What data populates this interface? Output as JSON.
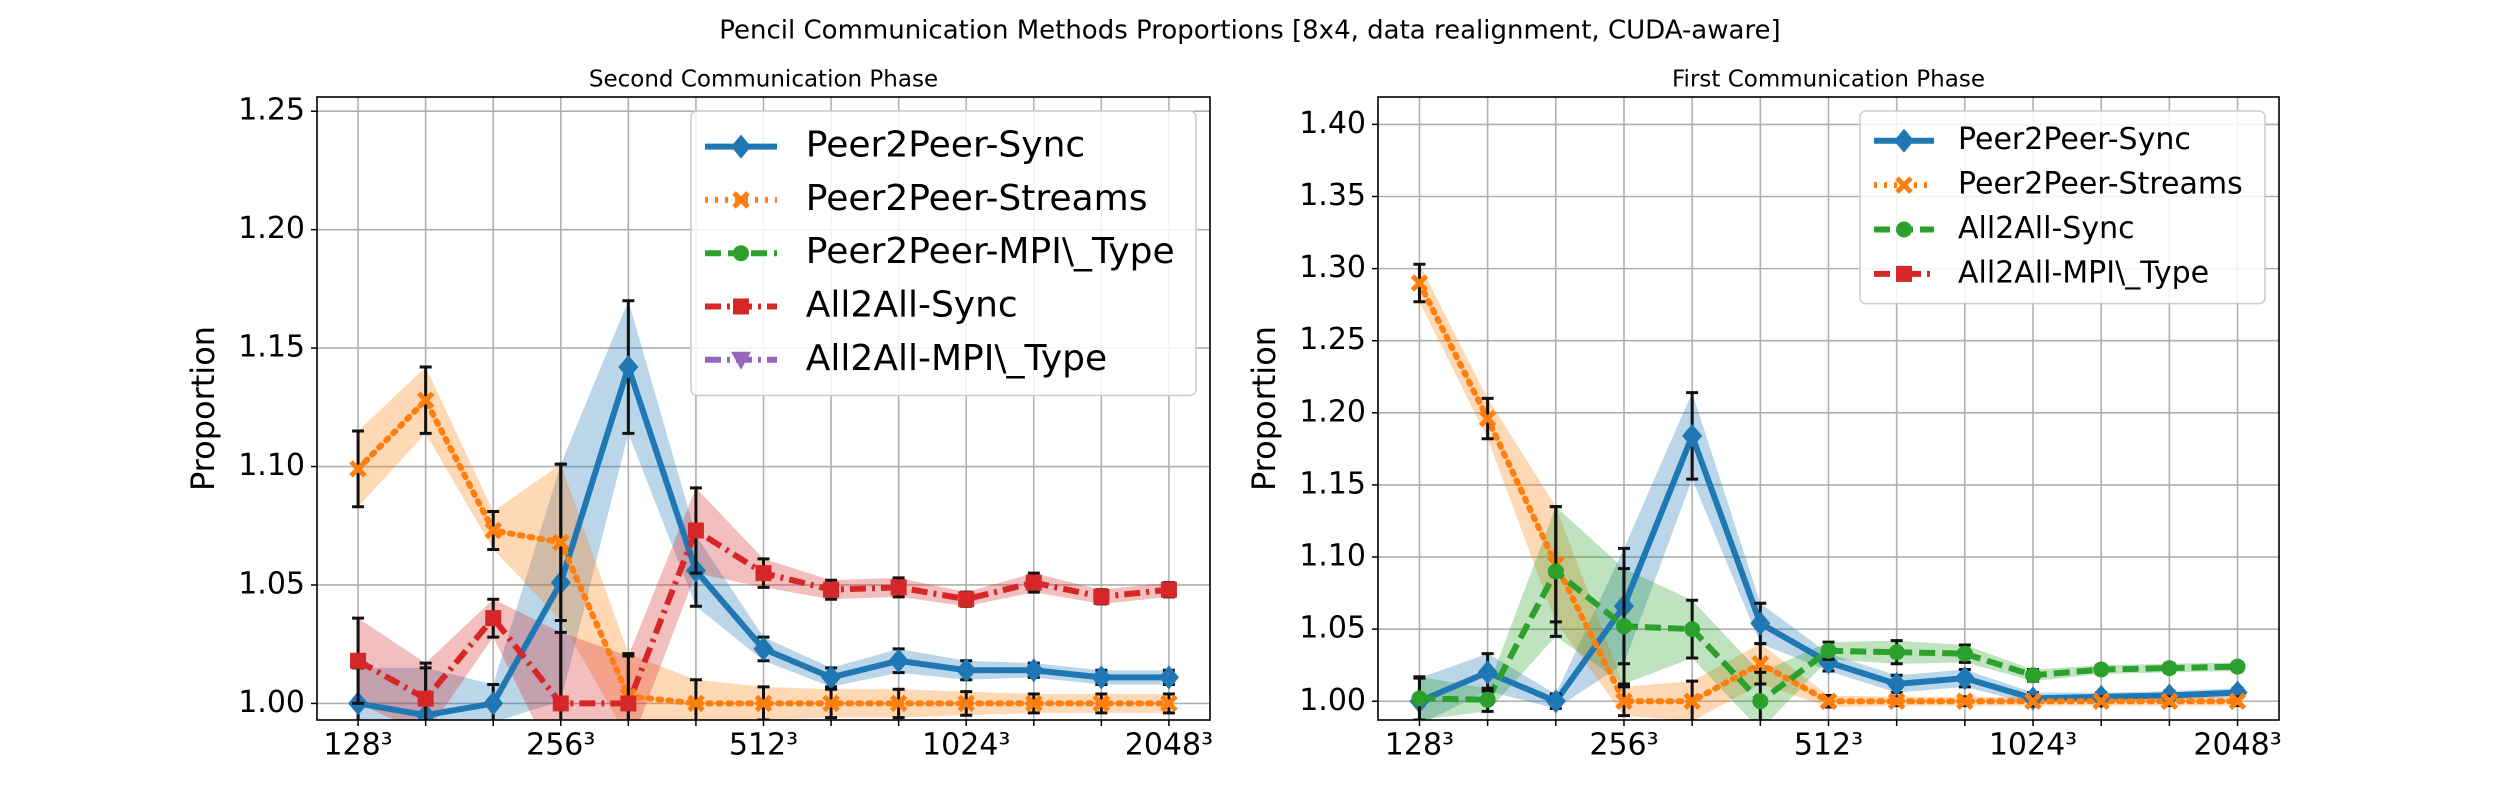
{
  "title": "Pencil Communication Methods Proportions [8x4, data realignment, CUDA-aware]",
  "chart_data": [
    {
      "type": "line",
      "title": "Second Communication Phase",
      "ylabel": "Proportion",
      "grid": true,
      "legend": "upper right",
      "categories": [
        "128³",
        null,
        null,
        "256³",
        null,
        null,
        "512³",
        null,
        null,
        "1024³",
        null,
        null,
        "2048³"
      ],
      "ylim": [
        0.993,
        1.256
      ],
      "yticks": [
        {
          "value": 1,
          "label": "1.00"
        },
        {
          "value": 1.05,
          "label": "1.05"
        },
        {
          "value": 1.1,
          "label": "1.10"
        },
        {
          "value": 1.15,
          "label": "1.15"
        },
        {
          "value": 1.2,
          "label": "1.20"
        },
        {
          "value": 1.25,
          "label": "1.25"
        }
      ],
      "series": [
        {
          "name": "Peer2Peer-Sync",
          "color": "#1f77b4",
          "linestyle": "solid",
          "marker": "diamond",
          "values": [
            1.0,
            0.995,
            1.0,
            1.051,
            1.142,
            1.056,
            1.023,
            1.011,
            1.018,
            1.014,
            1.014,
            1.011,
            1.011
          ],
          "errors": [
            0.015,
            0.02,
            0.008,
            0.05,
            0.028,
            0.015,
            0.005,
            0.004,
            0.005,
            0.004,
            0.003,
            0.003,
            0.003
          ]
        },
        {
          "name": "Peer2Peer-Streams",
          "color": "#ff7f0e",
          "linestyle": "dotted",
          "marker": "x",
          "values": [
            1.099,
            1.128,
            1.073,
            1.068,
            1.003,
            1.0,
            1.0,
            1.0,
            1.0,
            1.0,
            1.0,
            1.0,
            1.0
          ],
          "errors": [
            0.016,
            0.014,
            0.008,
            0.033,
            0.018,
            0.01,
            0.007,
            0.006,
            0.006,
            0.005,
            0.004,
            0.004,
            0.004
          ]
        },
        {
          "name": "Peer2Peer-MPI\\_Type",
          "color": "#2ca02c",
          "linestyle": "dashed",
          "marker": "circle",
          "values": [
            null,
            null,
            null,
            null,
            null,
            null,
            null,
            null,
            null,
            null,
            null,
            null,
            null
          ],
          "errors": [
            null,
            null,
            null,
            null,
            null,
            null,
            null,
            null,
            null,
            null,
            null,
            null,
            null
          ]
        },
        {
          "name": "All2All-Sync",
          "color": "#d62728",
          "linestyle": "dashdot",
          "marker": "square",
          "values": [
            1.018,
            1.002,
            1.036,
            1.0,
            1.0,
            1.073,
            1.055,
            1.048,
            1.049,
            1.044,
            1.051,
            1.045,
            1.048
          ],
          "errors": [
            0.018,
            0.015,
            0.008,
            0.03,
            0.02,
            0.018,
            0.006,
            0.004,
            0.004,
            0.003,
            0.004,
            0.003,
            0.003
          ]
        },
        {
          "name": "All2All-MPI\\_Type",
          "color": "#9467bd",
          "linestyle": "dashdot",
          "marker": "triangle",
          "values": [
            null,
            null,
            null,
            null,
            null,
            null,
            null,
            null,
            null,
            null,
            null,
            null,
            null
          ],
          "errors": [
            null,
            null,
            null,
            null,
            null,
            null,
            null,
            null,
            null,
            null,
            null,
            null,
            null
          ]
        }
      ]
    },
    {
      "type": "line",
      "title": "First Communication Phase",
      "ylabel": "Proportion",
      "grid": true,
      "legend": "upper right",
      "categories": [
        "128³",
        null,
        null,
        "256³",
        null,
        null,
        "512³",
        null,
        null,
        "1024³",
        null,
        null,
        "2048³"
      ],
      "ylim": [
        0.987,
        1.419
      ],
      "yticks": [
        {
          "value": 1,
          "label": "1.00"
        },
        {
          "value": 1.05,
          "label": "1.05"
        },
        {
          "value": 1.1,
          "label": "1.10"
        },
        {
          "value": 1.15,
          "label": "1.15"
        },
        {
          "value": 1.2,
          "label": "1.20"
        },
        {
          "value": 1.25,
          "label": "1.25"
        },
        {
          "value": 1.3,
          "label": "1.30"
        },
        {
          "value": 1.35,
          "label": "1.35"
        },
        {
          "value": 1.4,
          "label": "1.40"
        }
      ],
      "series": [
        {
          "name": "Peer2Peer-Sync",
          "color": "#1f77b4",
          "linestyle": "solid",
          "marker": "diamond",
          "values": [
            1.0,
            1.02,
            1.0,
            1.066,
            1.184,
            1.054,
            1.027,
            1.012,
            1.016,
            1.002,
            1.003,
            1.004,
            1.006
          ],
          "errors": [
            0.016,
            0.013,
            0.005,
            0.04,
            0.03,
            0.014,
            0.006,
            0.006,
            0.006,
            0.004,
            0.003,
            0.003,
            0.003
          ]
        },
        {
          "name": "Peer2Peer-Streams",
          "color": "#ff7f0e",
          "linestyle": "dotted",
          "marker": "x",
          "values": [
            1.29,
            1.196,
            1.095,
            1.0,
            1.0,
            1.026,
            1.0,
            1.0,
            1.0,
            1.0,
            1.0,
            1.0,
            1.0
          ],
          "errors": [
            0.013,
            0.014,
            0.04,
            0.01,
            0.014,
            0.014,
            0.004,
            0.003,
            0.003,
            0.003,
            0.003,
            0.003,
            0.003
          ]
        },
        {
          "name": "All2All-Sync",
          "color": "#2ca02c",
          "linestyle": "dashed",
          "marker": "circle",
          "values": [
            1.002,
            1.001,
            1.09,
            1.052,
            1.05,
            1.0,
            1.035,
            1.034,
            1.033,
            1.018,
            1.022,
            1.023,
            1.024
          ],
          "errors": [
            0.015,
            0.008,
            0.045,
            0.04,
            0.02,
            0.02,
            0.006,
            0.008,
            0.006,
            0.004,
            0.003,
            0.003,
            0.003
          ]
        },
        {
          "name": "All2All-MPI\\_Type",
          "color": "#d62728",
          "linestyle": "dashdot",
          "marker": "square",
          "values": [
            null,
            null,
            null,
            null,
            null,
            null,
            null,
            null,
            null,
            null,
            null,
            null,
            null
          ],
          "errors": [
            null,
            null,
            null,
            null,
            null,
            null,
            null,
            null,
            null,
            null,
            null,
            null,
            null
          ]
        }
      ]
    }
  ]
}
